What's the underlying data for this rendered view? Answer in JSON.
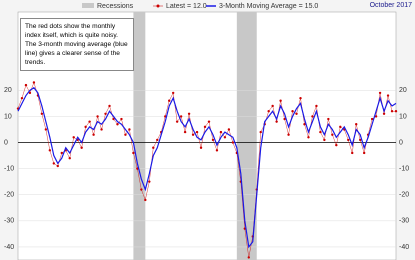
{
  "chart_data": {
    "type": "line",
    "subtitle": "October 2017",
    "annotation": "The red dots show the monthly  index itself, which is quite noisy. The 3-month moving average (blue line) gives a clearer sense of the trends.",
    "recession_label": "Recessions",
    "recessions": [
      [
        29,
        32
      ],
      [
        55,
        60
      ]
    ],
    "recession_color": "#c8c8c8",
    "xlim": [
      0,
      95
    ],
    "ylim": [
      -45,
      50
    ],
    "yticks": [
      -40,
      -30,
      -20,
      -10,
      0,
      10,
      20
    ],
    "grid": true,
    "series": [
      {
        "name": "Latest = 12.0",
        "color": "#cc0000",
        "style": "dots",
        "values": [
          13,
          17,
          22,
          19,
          23,
          18,
          11,
          5,
          -3,
          -8,
          -9,
          -4,
          -3,
          -6,
          2,
          1,
          -2,
          6,
          8,
          3,
          10,
          5,
          11,
          14,
          9,
          7,
          9,
          3,
          5,
          -4,
          -10,
          -18,
          -22,
          -15,
          -2,
          1,
          4,
          10,
          16,
          19,
          8,
          10,
          4,
          11,
          3,
          4,
          -2,
          6,
          8,
          1,
          -3,
          4,
          2,
          5,
          0,
          -4,
          -15,
          -33,
          -44,
          -36,
          -18,
          4,
          7,
          12,
          14,
          8,
          16,
          9,
          3,
          12,
          11,
          17,
          7,
          2,
          10,
          14,
          4,
          1,
          9,
          3,
          -1,
          6,
          5,
          1,
          -4,
          7,
          1,
          -4,
          3,
          9,
          10,
          19,
          11,
          18,
          12,
          12
        ]
      },
      {
        "name": "3-Month Moving Average = 15.0",
        "color": "#1a1ae6",
        "style": "line",
        "values": [
          12,
          15,
          18,
          20,
          21,
          19,
          14,
          8,
          2,
          -5,
          -8,
          -6,
          -2,
          -4,
          -1,
          2,
          0,
          4,
          6,
          5,
          8,
          7,
          9,
          12,
          10,
          8,
          7,
          5,
          3,
          0,
          -8,
          -14,
          -18,
          -12,
          -5,
          -2,
          3,
          8,
          14,
          17,
          12,
          8,
          6,
          9,
          5,
          2,
          1,
          4,
          6,
          3,
          -1,
          2,
          4,
          3,
          2,
          -2,
          -12,
          -30,
          -40,
          -38,
          -20,
          -2,
          8,
          10,
          12,
          9,
          14,
          11,
          6,
          10,
          13,
          15,
          9,
          4,
          8,
          12,
          6,
          3,
          7,
          5,
          2,
          4,
          6,
          3,
          -1,
          5,
          3,
          -2,
          2,
          7,
          12,
          17,
          12,
          16,
          14,
          15
        ]
      }
    ]
  }
}
